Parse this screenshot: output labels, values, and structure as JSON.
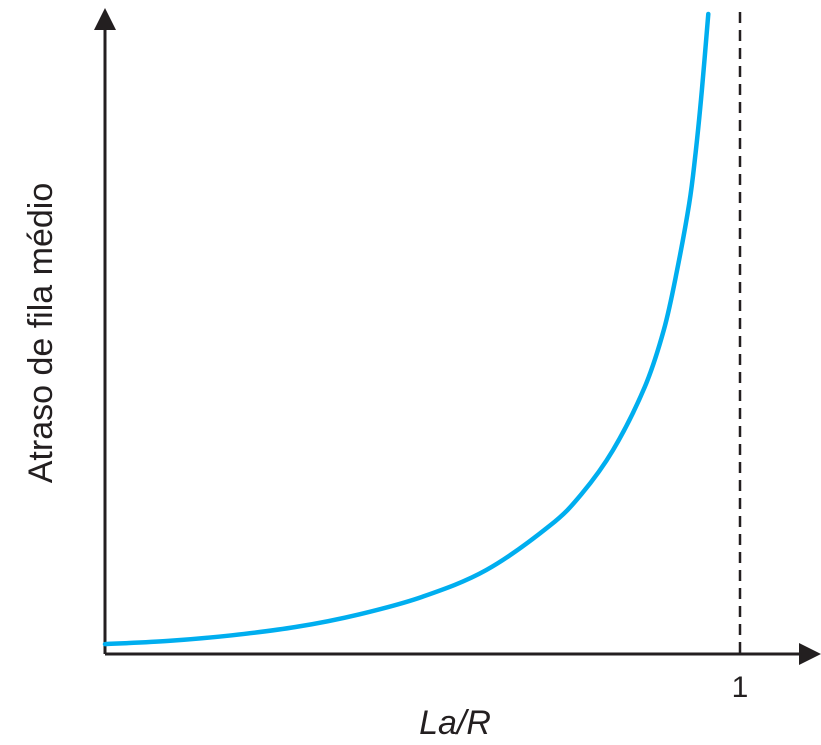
{
  "chart_data": {
    "type": "line",
    "title": "",
    "xlabel": "La/R",
    "ylabel": "Atraso de fila médio",
    "xlim": [
      0,
      1.1
    ],
    "ylim": [
      0,
      1
    ],
    "x_ticks": [
      1
    ],
    "x_tick_labels": [
      "1"
    ],
    "y_ticks": [],
    "grid": false,
    "legend": "none",
    "colors": {
      "curve": "#00aeef",
      "axis": "#231f20",
      "asymptote": "#231f20"
    },
    "asymptote": {
      "x": 1,
      "style": "dashed"
    },
    "series": [
      {
        "values_description_free": true,
        "x": [
          0.0,
          0.1,
          0.2,
          0.3,
          0.4,
          0.5,
          0.6,
          0.7,
          0.75,
          0.8,
          0.85,
          0.88,
          0.9,
          0.92,
          0.93,
          0.94,
          0.95
        ],
        "y": [
          0.003,
          0.008,
          0.017,
          0.03,
          0.05,
          0.078,
          0.12,
          0.19,
          0.24,
          0.31,
          0.41,
          0.5,
          0.59,
          0.7,
          0.78,
          0.88,
          1.0
        ]
      }
    ]
  }
}
